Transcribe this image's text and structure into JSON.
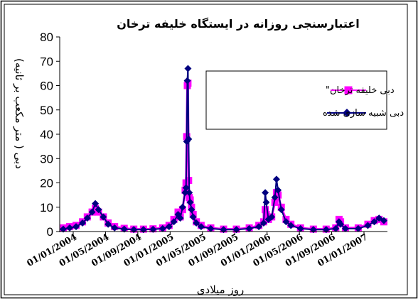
{
  "chart_data": {
    "type": "line",
    "title": "اعتبارسنجی روزانه در ایستگاه خلیفه ترخان",
    "xlabel": "روز میلادی",
    "ylabel": "دبی ( متر مکعب بر ثانیه)",
    "ylim": [
      0,
      80
    ],
    "y_ticks": [
      0,
      10,
      20,
      30,
      40,
      50,
      60,
      70,
      80
    ],
    "x_ticks": [
      "01/01/2004",
      "01/05/2004",
      "01/09/2004",
      "01/01/2005",
      "01/05/2005",
      "01/09/2005",
      "01/01/2006",
      "01/05/2006",
      "01/09/2006",
      "01/01/2007"
    ],
    "grid": false,
    "legend_position": "upper-right",
    "series": [
      {
        "name": "دبی خلیفه ترخان\"",
        "color": "#ff00ff",
        "marker": "square",
        "points": [
          [
            0,
            1.5
          ],
          [
            20,
            2
          ],
          [
            40,
            2.5
          ],
          [
            60,
            4
          ],
          [
            75,
            6
          ],
          [
            90,
            8
          ],
          [
            100,
            9.5
          ],
          [
            110,
            8
          ],
          [
            125,
            6
          ],
          [
            140,
            3.5
          ],
          [
            160,
            2
          ],
          [
            190,
            1.3
          ],
          [
            220,
            1
          ],
          [
            250,
            1
          ],
          [
            280,
            1.1
          ],
          [
            310,
            1.5
          ],
          [
            330,
            2.5
          ],
          [
            345,
            5
          ],
          [
            358,
            8
          ],
          [
            365,
            6
          ],
          [
            372,
            9
          ],
          [
            380,
            17
          ],
          [
            383,
            20
          ],
          [
            385,
            39
          ],
          [
            387,
            60
          ],
          [
            389,
            61
          ],
          [
            391,
            21
          ],
          [
            393,
            14
          ],
          [
            396,
            13
          ],
          [
            400,
            10
          ],
          [
            405,
            7
          ],
          [
            415,
            4
          ],
          [
            430,
            2.5
          ],
          [
            460,
            1.5
          ],
          [
            500,
            1
          ],
          [
            540,
            1
          ],
          [
            580,
            1.5
          ],
          [
            610,
            2.5
          ],
          [
            625,
            4
          ],
          [
            630,
            9
          ],
          [
            633,
            7
          ],
          [
            640,
            5
          ],
          [
            650,
            6
          ],
          [
            660,
            12
          ],
          [
            665,
            16
          ],
          [
            670,
            15
          ],
          [
            680,
            10
          ],
          [
            695,
            5
          ],
          [
            710,
            3
          ],
          [
            740,
            1.5
          ],
          [
            780,
            1
          ],
          [
            820,
            1
          ],
          [
            850,
            1.5
          ],
          [
            860,
            5
          ],
          [
            865,
            4
          ],
          [
            880,
            1.5
          ],
          [
            920,
            1.5
          ],
          [
            950,
            3
          ],
          [
            970,
            4.5
          ],
          [
            985,
            5
          ],
          [
            1000,
            4
          ]
        ]
      },
      {
        "name": "دبی شبیه سازی شده",
        "color": "#000080",
        "marker": "diamond",
        "points": [
          [
            0,
            1
          ],
          [
            20,
            1.5
          ],
          [
            40,
            2
          ],
          [
            60,
            3.5
          ],
          [
            75,
            5.5
          ],
          [
            90,
            8
          ],
          [
            100,
            11.5
          ],
          [
            110,
            9
          ],
          [
            125,
            6
          ],
          [
            140,
            3
          ],
          [
            160,
            1.5
          ],
          [
            190,
            1
          ],
          [
            220,
            0.8
          ],
          [
            250,
            0.8
          ],
          [
            280,
            0.9
          ],
          [
            310,
            1.2
          ],
          [
            330,
            2
          ],
          [
            345,
            4
          ],
          [
            358,
            7
          ],
          [
            365,
            5.5
          ],
          [
            372,
            10
          ],
          [
            380,
            16
          ],
          [
            383,
            18
          ],
          [
            385,
            37
          ],
          [
            387,
            62
          ],
          [
            389,
            67
          ],
          [
            391,
            38
          ],
          [
            393,
            16
          ],
          [
            396,
            12
          ],
          [
            400,
            9
          ],
          [
            405,
            6
          ],
          [
            415,
            3.5
          ],
          [
            430,
            2
          ],
          [
            460,
            1.2
          ],
          [
            500,
            0.8
          ],
          [
            540,
            0.8
          ],
          [
            580,
            1.2
          ],
          [
            610,
            2
          ],
          [
            625,
            3.5
          ],
          [
            630,
            16
          ],
          [
            633,
            12
          ],
          [
            640,
            5
          ],
          [
            650,
            6
          ],
          [
            660,
            14
          ],
          [
            665,
            21.5
          ],
          [
            670,
            17
          ],
          [
            680,
            9
          ],
          [
            695,
            4
          ],
          [
            710,
            2.5
          ],
          [
            740,
            1.2
          ],
          [
            780,
            0.8
          ],
          [
            820,
            0.8
          ],
          [
            850,
            1.2
          ],
          [
            860,
            4
          ],
          [
            865,
            3
          ],
          [
            880,
            1.2
          ],
          [
            920,
            1.2
          ],
          [
            950,
            2.5
          ],
          [
            970,
            4
          ],
          [
            985,
            5.5
          ],
          [
            1000,
            4.5
          ]
        ]
      }
    ]
  }
}
